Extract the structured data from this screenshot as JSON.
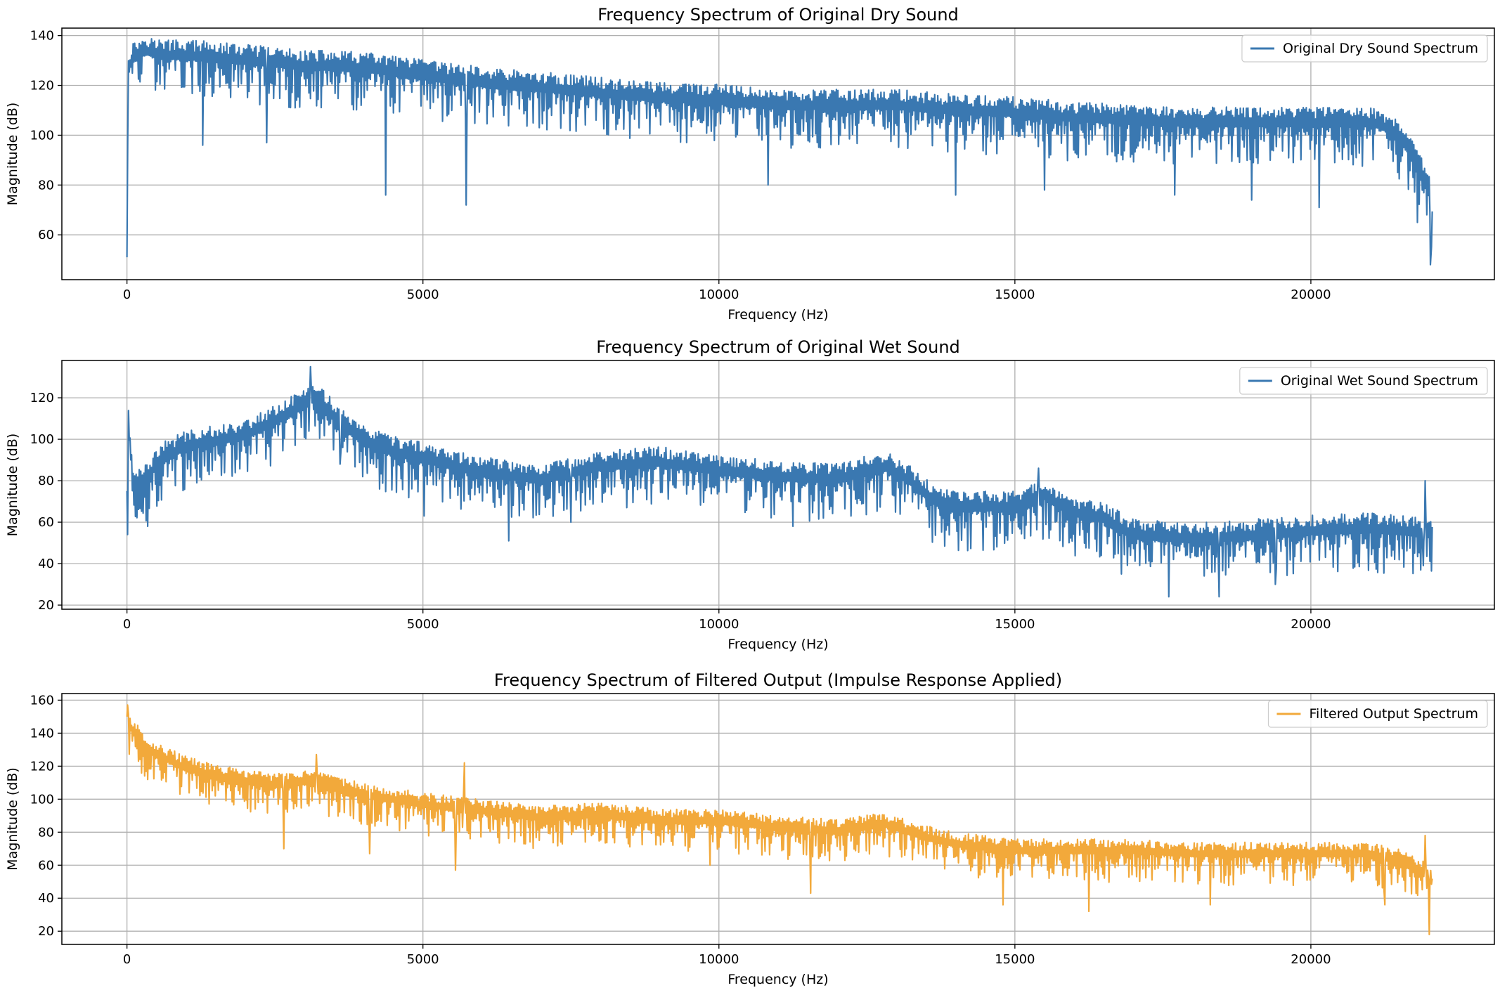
{
  "chart_data": [
    {
      "type": "line",
      "title": "Frequency Spectrum of Original Dry Sound",
      "xlabel": "Frequency (Hz)",
      "ylabel": "Magnitude (dB)",
      "xlim": [
        -1100,
        23100
      ],
      "ylim": [
        42,
        143
      ],
      "xticks": [
        0,
        5000,
        10000,
        15000,
        20000
      ],
      "yticks": [
        60,
        80,
        100,
        120,
        140
      ],
      "grid": true,
      "legend_position": "top-right",
      "series": [
        {
          "name": "Original Dry Sound Spectrum",
          "color": "#3a78b1",
          "x": [
            0,
            20,
            100,
            300,
            600,
            1000,
            1500,
            2000,
            3000,
            4000,
            5000,
            6000,
            7000,
            8000,
            9000,
            10000,
            11000,
            12000,
            13000,
            14000,
            15000,
            16000,
            17000,
            18000,
            19000,
            20000,
            21000,
            21200,
            21500,
            21800,
            22000,
            22050
          ],
          "values": [
            51,
            128,
            132,
            135,
            133,
            133,
            132,
            131,
            129,
            128,
            125,
            122,
            120,
            118,
            116,
            115,
            113,
            113,
            113,
            111,
            110,
            108,
            107,
            106,
            106,
            106,
            106,
            105,
            100,
            90,
            78,
            65
          ],
          "dips": [
            [
              1280,
              96
            ],
            [
              2360,
              97
            ],
            [
              4370,
              76
            ],
            [
              5730,
              72
            ],
            [
              10830,
              80
            ],
            [
              14000,
              76
            ],
            [
              15500,
              78
            ],
            [
              17700,
              76
            ],
            [
              19000,
              74
            ],
            [
              20140,
              71
            ],
            [
              21800,
              65
            ],
            [
              22020,
              48
            ]
          ],
          "spread": 10
        }
      ]
    },
    {
      "type": "line",
      "title": "Frequency Spectrum of Original Wet Sound",
      "xlabel": "Frequency (Hz)",
      "ylabel": "Magnitude (dB)",
      "xlim": [
        -1100,
        23100
      ],
      "ylim": [
        18,
        138
      ],
      "xticks": [
        0,
        5000,
        10000,
        15000,
        20000
      ],
      "yticks": [
        20,
        40,
        60,
        80,
        100,
        120
      ],
      "grid": true,
      "legend_position": "top-right",
      "series": [
        {
          "name": "Original Wet Sound Spectrum",
          "color": "#3a78b1",
          "x": [
            0,
            20,
            100,
            300,
            600,
            1000,
            2000,
            2500,
            3000,
            3200,
            3500,
            4000,
            4500,
            5000,
            6000,
            7000,
            8000,
            9000,
            10000,
            11000,
            12000,
            12800,
            13200,
            13600,
            14000,
            15000,
            15500,
            16000,
            16500,
            17000,
            18000,
            19000,
            20000,
            21000,
            22000,
            22050
          ],
          "values": [
            75,
            110,
            80,
            82,
            92,
            98,
            103,
            110,
            118,
            122,
            112,
            100,
            95,
            92,
            85,
            82,
            88,
            90,
            86,
            83,
            82,
            88,
            82,
            72,
            68,
            69,
            74,
            66,
            63,
            55,
            53,
            55,
            57,
            58,
            56,
            57
          ],
          "dips": [
            [
              10,
              54
            ],
            [
              350,
              58
            ],
            [
              3600,
              88
            ],
            [
              5020,
              63
            ],
            [
              6450,
              51
            ],
            [
              7500,
              60
            ],
            [
              11250,
              58
            ],
            [
              16800,
              35
            ],
            [
              17600,
              24
            ],
            [
              18450,
              24
            ],
            [
              19400,
              30
            ],
            [
              21900,
              39
            ]
          ],
          "peaks": [
            [
              0,
              122
            ],
            [
              3100,
              135
            ],
            [
              15400,
              86
            ],
            [
              21930,
              80
            ]
          ],
          "spread": 12
        }
      ]
    },
    {
      "type": "line",
      "title": "Frequency Spectrum of Filtered Output (Impulse Response Applied)",
      "xlabel": "Frequency (Hz)",
      "ylabel": "Magnitude (dB)",
      "xlim": [
        -1100,
        23100
      ],
      "ylim": [
        12,
        164
      ],
      "xticks": [
        0,
        5000,
        10000,
        15000,
        20000
      ],
      "yticks": [
        20,
        40,
        60,
        80,
        100,
        120,
        140,
        160
      ],
      "grid": true,
      "legend_position": "top-right",
      "series": [
        {
          "name": "Filtered Output Spectrum",
          "color": "#f2a93b",
          "x": [
            0,
            50,
            200,
            400,
            700,
            1000,
            1500,
            2000,
            2500,
            3000,
            3500,
            4000,
            5000,
            6000,
            7000,
            8000,
            9000,
            10000,
            11000,
            12000,
            12800,
            13500,
            14000,
            15000,
            16000,
            17000,
            18000,
            19000,
            20000,
            21000,
            21500,
            22000,
            22050
          ],
          "values": [
            150,
            145,
            138,
            130,
            125,
            120,
            115,
            112,
            110,
            112,
            108,
            104,
            98,
            94,
            90,
            92,
            88,
            88,
            84,
            82,
            86,
            78,
            74,
            70,
            70,
            70,
            68,
            68,
            68,
            68,
            64,
            55,
            50
          ],
          "dips": [
            [
              2650,
              70
            ],
            [
              4100,
              67
            ],
            [
              5550,
              57
            ],
            [
              9850,
              60
            ],
            [
              11550,
              43
            ],
            [
              14800,
              36
            ],
            [
              16250,
              32
            ],
            [
              18300,
              36
            ],
            [
              21250,
              36
            ],
            [
              22000,
              18
            ]
          ],
          "peaks": [
            [
              10,
              157
            ],
            [
              3200,
              127
            ],
            [
              5700,
              122
            ],
            [
              21930,
              78
            ]
          ],
          "spread": 11
        }
      ]
    }
  ]
}
